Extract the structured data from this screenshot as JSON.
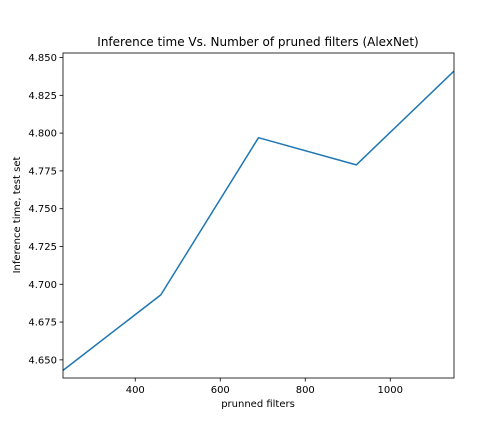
{
  "chart_data": {
    "type": "line",
    "title": "Inference time Vs. Number of pruned filters (AlexNet)",
    "xlabel": "prunned filters",
    "ylabel": "Inference time, test set",
    "xlim": [
      230,
      1150
    ],
    "ylim": [
      4.638,
      4.853
    ],
    "xticks": [
      400,
      600,
      800,
      1000
    ],
    "xtick_labels": [
      "400",
      "600",
      "800",
      "1000"
    ],
    "yticks": [
      4.65,
      4.675,
      4.7,
      4.725,
      4.75,
      4.775,
      4.8,
      4.825,
      4.85
    ],
    "ytick_labels": [
      "4.650",
      "4.675",
      "4.700",
      "4.725",
      "4.750",
      "4.775",
      "4.800",
      "4.825",
      "4.850"
    ],
    "grid": false,
    "series": [
      {
        "color": "#1f77b4",
        "x": [
          230,
          460,
          690,
          920,
          1150
        ],
        "y": [
          4.643,
          4.693,
          4.797,
          4.779,
          4.841
        ]
      }
    ]
  }
}
